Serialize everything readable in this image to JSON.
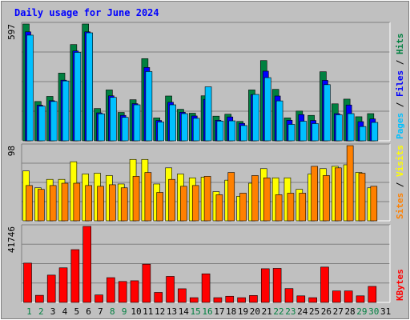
{
  "chart_data": {
    "type": "bar",
    "title": "Daily usage for June 2024",
    "x": [
      "1",
      "2",
      "3",
      "4",
      "5",
      "6",
      "7",
      "8",
      "9",
      "10",
      "11",
      "12",
      "13",
      "14",
      "15",
      "16",
      "17",
      "18",
      "19",
      "20",
      "21",
      "22",
      "23",
      "24",
      "25",
      "26",
      "27",
      "28",
      "29",
      "30",
      "31"
    ],
    "weekend_days": [
      "1",
      "2",
      "8",
      "9",
      "15",
      "16",
      "22",
      "23",
      "29",
      "30"
    ],
    "colors": {
      "hits": "#008040",
      "files": "#0000ff",
      "pages": "#00c0ff",
      "visits": "#ffff00",
      "sites": "#ff8000",
      "kbytes": "#ff0000",
      "weekday_label": "#000000",
      "weekend_label": "#008040",
      "title": "#0000ff"
    },
    "panels": [
      {
        "id": "hits-files-pages",
        "max_label": "597",
        "ymax": 597,
        "legend": [
          "Pages",
          "Files",
          "Hits"
        ],
        "series": [
          {
            "name": "Hits",
            "values": [
              597,
              201,
              227,
              346,
              492,
              597,
              165,
              260,
              145,
              210,
              420,
              117,
              229,
              161,
              141,
              230,
              126,
              136,
              99,
              260,
              410,
              263,
              117,
              152,
              130,
              353,
              189,
              213,
              123,
              139,
              0
            ]
          },
          {
            "name": "Files",
            "values": [
              557,
              182,
              205,
              310,
              459,
              557,
              143,
              230,
              130,
              190,
              375,
              104,
              197,
              146,
              127,
              212,
              105,
              122,
              89,
              236,
              356,
              229,
              105,
              134,
              104,
              309,
              139,
              183,
              98,
              112,
              0
            ]
          },
          {
            "name": "Pages",
            "values": [
              540,
              177,
              201,
              306,
              452,
              552,
              138,
              222,
              120,
              184,
              354,
              96,
              184,
              139,
              115,
              276,
              101,
              102,
              78,
              237,
              323,
              204,
              84,
              100,
              88,
              287,
              133,
              139,
              73,
              94,
              0
            ]
          }
        ]
      },
      {
        "id": "visits-sites",
        "max_label": "98",
        "ymax": 98,
        "legend": [
          "Sites",
          "Visits"
        ],
        "series": [
          {
            "name": "Visits",
            "values": [
              65,
              43,
              54,
              54,
              77,
              61,
              62,
              59,
              48,
              80,
              80,
              48,
              69,
              61,
              56,
              57,
              38,
              53,
              32,
              49,
              68,
              56,
              56,
              41,
              61,
              68,
              71,
              73,
              63,
              43,
              0
            ]
          },
          {
            "name": "Sites",
            "values": [
              46,
              41,
              46,
              49,
              49,
              46,
              45,
              47,
              43,
              58,
              63,
              37,
              54,
              45,
              46,
              58,
              34,
              63,
              36,
              59,
              56,
              34,
              36,
              36,
              71,
              59,
              69,
              98,
              62,
              45,
              0
            ]
          }
        ]
      },
      {
        "id": "kbytes",
        "max_label": "41746",
        "ymax": 41746,
        "legend": [
          "KBytes"
        ],
        "series": [
          {
            "name": "KBytes",
            "values": [
              21580,
              3900,
              15000,
              19000,
              29000,
              41746,
              4100,
              13600,
              11500,
              11900,
              21000,
              5500,
              14300,
              7500,
              2600,
              15700,
              2600,
              3400,
              2600,
              3800,
              18500,
              18700,
              7600,
              3600,
              2600,
              19400,
              6300,
              6300,
              3600,
              8800,
              0
            ]
          }
        ]
      }
    ]
  }
}
